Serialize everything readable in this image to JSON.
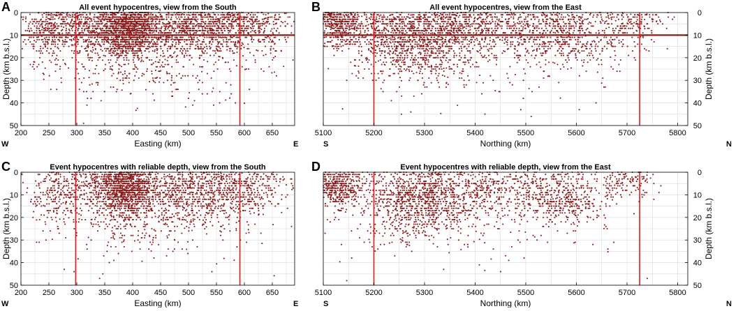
{
  "chart_data": [
    {
      "panel_label": "A",
      "type": "scatter",
      "title": "All event hypocentres, view from the South",
      "xlabel": "Easting (km)",
      "ylabel": "Depth (km b.s.l.)",
      "y_axis_side": "left",
      "xlim": [
        200,
        690
      ],
      "ylim": [
        50,
        0
      ],
      "x_ticks": [
        200,
        250,
        300,
        350,
        400,
        450,
        500,
        550,
        600,
        650
      ],
      "y_ticks": [
        0,
        10,
        20,
        30,
        40,
        50
      ],
      "direction_left": "W",
      "direction_right": "E",
      "reference_lines_x": [
        298,
        592
      ],
      "dense_depth_lines": [
        10
      ],
      "point_color": "#8b1a1a",
      "line_color": "#e8191a",
      "clusters": [
        {
          "x": 390,
          "y": 8,
          "sx": 25,
          "sy": 6,
          "n": 1100
        },
        {
          "x": 340,
          "y": 6,
          "sx": 60,
          "sy": 6,
          "n": 700
        },
        {
          "x": 500,
          "y": 7,
          "sx": 55,
          "sy": 6,
          "n": 900
        },
        {
          "x": 600,
          "y": 6,
          "sx": 45,
          "sy": 6,
          "n": 450
        },
        {
          "x": 250,
          "y": 8,
          "sx": 25,
          "sy": 7,
          "n": 250
        },
        {
          "x": 420,
          "y": 20,
          "sx": 90,
          "sy": 8,
          "n": 350
        },
        {
          "x": 450,
          "y": 32,
          "sx": 120,
          "sy": 8,
          "n": 60
        }
      ]
    },
    {
      "panel_label": "B",
      "type": "scatter",
      "title": "All event hypocentres, view from the East",
      "xlabel": "Northing (km)",
      "ylabel": "Depth (km b.s.l.)",
      "y_axis_side": "right",
      "xlim": [
        5100,
        5820
      ],
      "ylim": [
        50,
        0
      ],
      "x_ticks": [
        5100,
        5200,
        5300,
        5400,
        5500,
        5600,
        5700,
        5800
      ],
      "y_ticks": [
        0,
        10,
        20,
        30,
        40,
        50
      ],
      "direction_left": "S",
      "direction_right": "N",
      "reference_lines_x": [
        5200,
        5725
      ],
      "dense_depth_lines": [
        10
      ],
      "point_color": "#8b1a1a",
      "line_color": "#e8191a",
      "clusters": [
        {
          "x": 5130,
          "y": 5,
          "sx": 30,
          "sy": 5,
          "n": 600
        },
        {
          "x": 5270,
          "y": 10,
          "sx": 55,
          "sy": 7,
          "n": 900
        },
        {
          "x": 5400,
          "y": 7,
          "sx": 70,
          "sy": 6,
          "n": 700
        },
        {
          "x": 5570,
          "y": 10,
          "sx": 55,
          "sy": 7,
          "n": 600
        },
        {
          "x": 5700,
          "y": 5,
          "sx": 40,
          "sy": 5,
          "n": 200
        },
        {
          "x": 5300,
          "y": 22,
          "sx": 80,
          "sy": 6,
          "n": 300
        },
        {
          "x": 5400,
          "y": 33,
          "sx": 160,
          "sy": 8,
          "n": 50
        }
      ]
    },
    {
      "panel_label": "C",
      "type": "scatter",
      "title": "Event hypocentres with reliable depth, view from the South",
      "xlabel": "Easting (km)",
      "ylabel": "Depth (km b.s.l.)",
      "y_axis_side": "left",
      "xlim": [
        200,
        690
      ],
      "ylim": [
        50,
        0
      ],
      "x_ticks": [
        200,
        250,
        300,
        350,
        400,
        450,
        500,
        550,
        600,
        650
      ],
      "y_ticks": [
        0,
        10,
        20,
        30,
        40,
        50
      ],
      "direction_left": "W",
      "direction_right": "E",
      "reference_lines_x": [
        298,
        592
      ],
      "dense_depth_lines": [],
      "point_color": "#8b1a1a",
      "line_color": "#e8191a",
      "clusters": [
        {
          "x": 390,
          "y": 8,
          "sx": 22,
          "sy": 6,
          "n": 900
        },
        {
          "x": 350,
          "y": 6,
          "sx": 50,
          "sy": 6,
          "n": 450
        },
        {
          "x": 500,
          "y": 9,
          "sx": 55,
          "sy": 6,
          "n": 650
        },
        {
          "x": 600,
          "y": 8,
          "sx": 45,
          "sy": 6,
          "n": 350
        },
        {
          "x": 260,
          "y": 10,
          "sx": 25,
          "sy": 7,
          "n": 200
        },
        {
          "x": 420,
          "y": 21,
          "sx": 85,
          "sy": 7,
          "n": 280
        },
        {
          "x": 450,
          "y": 33,
          "sx": 120,
          "sy": 8,
          "n": 45
        }
      ]
    },
    {
      "panel_label": "D",
      "type": "scatter",
      "title": "Event hypocentres with reliable depth, view from the East",
      "xlabel": "Northing (km)",
      "ylabel": "Depth (km b.s.l.)",
      "y_axis_side": "right",
      "xlim": [
        5100,
        5820
      ],
      "ylim": [
        50,
        0
      ],
      "x_ticks": [
        5100,
        5200,
        5300,
        5400,
        5500,
        5600,
        5700,
        5800
      ],
      "y_ticks": [
        0,
        10,
        20,
        30,
        40,
        50
      ],
      "direction_left": "S",
      "direction_right": "N",
      "reference_lines_x": [
        5200,
        5725
      ],
      "dense_depth_lines": [],
      "point_color": "#8b1a1a",
      "line_color": "#e8191a",
      "clusters": [
        {
          "x": 5130,
          "y": 6,
          "sx": 28,
          "sy": 5,
          "n": 500
        },
        {
          "x": 5280,
          "y": 11,
          "sx": 50,
          "sy": 7,
          "n": 700
        },
        {
          "x": 5400,
          "y": 8,
          "sx": 60,
          "sy": 6,
          "n": 450
        },
        {
          "x": 5570,
          "y": 11,
          "sx": 50,
          "sy": 7,
          "n": 550
        },
        {
          "x": 5700,
          "y": 4,
          "sx": 30,
          "sy": 4,
          "n": 120
        },
        {
          "x": 5300,
          "y": 22,
          "sx": 75,
          "sy": 6,
          "n": 250
        },
        {
          "x": 5400,
          "y": 33,
          "sx": 160,
          "sy": 8,
          "n": 40
        }
      ]
    }
  ]
}
